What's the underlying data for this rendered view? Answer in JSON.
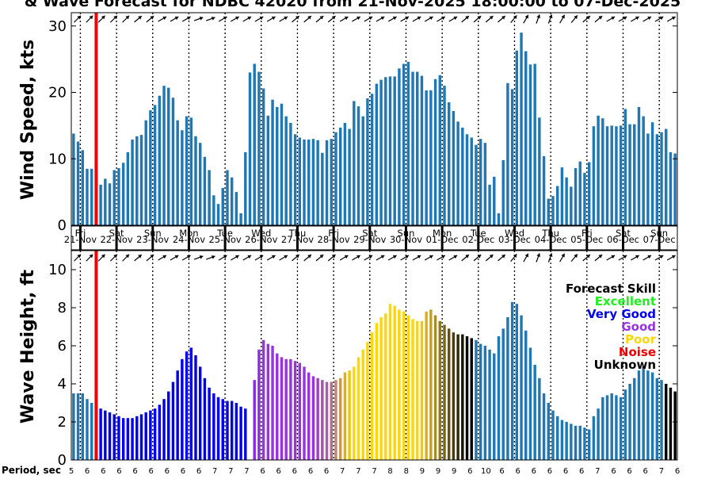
{
  "title": "& Wave Forecast for NDBC 42020 from 21-Nov-2025 18:00:00 to 07-Dec-2025",
  "wind_panel": {
    "ylabel": "Wind Speed, kts",
    "yticks": [
      "0",
      "10",
      "20",
      "30"
    ]
  },
  "wave_panel": {
    "ylabel": "Wave Height, ft",
    "yticks": [
      "0",
      "2",
      "4",
      "6",
      "8",
      "10"
    ]
  },
  "days": [
    {
      "dow": "Fri",
      "date": "21-Nov"
    },
    {
      "dow": "Sat",
      "date": "22-Nov"
    },
    {
      "dow": "Sun",
      "date": "23-Nov"
    },
    {
      "dow": "Mon",
      "date": "24-Nov"
    },
    {
      "dow": "Tue",
      "date": "25-Nov"
    },
    {
      "dow": "Wed",
      "date": "26-Nov"
    },
    {
      "dow": "Thu",
      "date": "27-Nov"
    },
    {
      "dow": "Fri",
      "date": "28-Nov"
    },
    {
      "dow": "Sat",
      "date": "29-Nov"
    },
    {
      "dow": "Sun",
      "date": "30-Nov"
    },
    {
      "dow": "Mon",
      "date": "01-Dec"
    },
    {
      "dow": "Tue",
      "date": "02-Dec"
    },
    {
      "dow": "Wed",
      "date": "03-Dec"
    },
    {
      "dow": "Thu",
      "date": "04-Dec"
    },
    {
      "dow": "Fri",
      "date": "05-Dec"
    },
    {
      "dow": "Sat",
      "date": "06-Dec"
    },
    {
      "dow": "Sun",
      "date": "07-Dec"
    }
  ],
  "legend": {
    "title": "Forecast Skill",
    "items": [
      {
        "label": "Excellent",
        "color": "#22ee22"
      },
      {
        "label": "Very Good",
        "color": "#0000ee"
      },
      {
        "label": "Good",
        "color": "#9933dd"
      },
      {
        "label": "Poor",
        "color": "#ffd700"
      },
      {
        "label": "Noise",
        "color": "#ee0000"
      },
      {
        "label": "Unknown",
        "color": "#000000"
      }
    ]
  },
  "period_label": "Period, sec",
  "period_ticks": [
    "5",
    "6",
    "6",
    "6",
    "6",
    "6",
    "6",
    "6",
    "6",
    "7",
    "7",
    "7",
    "6",
    "6",
    "6",
    "6",
    "6",
    "7",
    "7",
    "7",
    "8",
    "8",
    "9",
    "9",
    "9",
    "6",
    "10",
    "6",
    "6",
    "6",
    "6",
    "6",
    "6",
    "7",
    "6",
    "6",
    "6",
    "7",
    "6"
  ],
  "chart_data": {
    "type": "bar",
    "x_label": "",
    "x_start": "21-Nov-2025 18:00",
    "x_end": "07-Dec-2025",
    "step_hours": 3,
    "now_marker_index": 5,
    "now_marker_color": "#ee0000",
    "grid": "vertical dotted lines at each day",
    "series": [
      {
        "name": "Wind Speed, kts",
        "ylim": [
          0,
          32
        ],
        "values": [
          13.8,
          12.6,
          11.3,
          8.5,
          8.5,
          8.4,
          6.1,
          7.0,
          6.3,
          8.3,
          8.6,
          9.4,
          11.0,
          12.9,
          13.4,
          13.6,
          15.8,
          17.3,
          18.1,
          19.5,
          21.0,
          20.7,
          19.2,
          15.8,
          14.3,
          16.4,
          16.2,
          13.4,
          12.4,
          10.3,
          8.3,
          4.5,
          3.2,
          5.6,
          8.3,
          7.2,
          5.0,
          1.8,
          11.0,
          23.0,
          24.3,
          23.1,
          20.6,
          16.5,
          18.9,
          17.8,
          18.3,
          16.4,
          15.4,
          13.7,
          13.2,
          12.9,
          12.9,
          13.0,
          12.8,
          10.9,
          12.8,
          13.0,
          14.0,
          14.7,
          15.4,
          14.5,
          18.7,
          17.9,
          16.4,
          19.1,
          19.8,
          21.3,
          21.9,
          22.3,
          22.4,
          22.4,
          23.6,
          24.3,
          24.6,
          23.1,
          23.1,
          22.5,
          20.3,
          20.3,
          22.0,
          22.6,
          21.0,
          18.5,
          17.2,
          15.6,
          14.7,
          13.7,
          13.2,
          12.1,
          13.0,
          12.4,
          6.1,
          7.3,
          1.8,
          9.8,
          21.4,
          20.5,
          26.3,
          29.0,
          26.2,
          24.2,
          24.3,
          16.2,
          10.4,
          4.0,
          4.4,
          5.9,
          8.7,
          7.2,
          5.8,
          8.6,
          9.6,
          7.9,
          9.5,
          14.9,
          16.5,
          16.1,
          14.9,
          15.0,
          14.9,
          15.0,
          17.5,
          15.2,
          15.2,
          17.8,
          16.4,
          13.8,
          15.5,
          13.7,
          14.0,
          14.5,
          11.0,
          10.8
        ]
      },
      {
        "name": "Wave Height, ft",
        "ylim": [
          0,
          11
        ],
        "values": [
          3.5,
          3.5,
          3.5,
          3.2,
          3.0,
          2.9,
          2.7,
          2.6,
          2.5,
          2.4,
          2.3,
          2.2,
          2.2,
          2.2,
          2.3,
          2.4,
          2.5,
          2.6,
          2.7,
          2.9,
          3.2,
          3.6,
          4.1,
          4.7,
          5.3,
          5.7,
          5.9,
          5.5,
          4.9,
          4.3,
          3.8,
          3.5,
          3.3,
          3.2,
          3.1,
          3.1,
          3.0,
          2.8,
          2.7,
          0.0,
          4.2,
          5.8,
          6.3,
          6.1,
          6.0,
          5.6,
          5.4,
          5.3,
          5.3,
          5.2,
          5.1,
          4.9,
          4.6,
          4.4,
          4.3,
          4.2,
          4.1,
          4.1,
          4.2,
          4.3,
          4.6,
          4.7,
          4.9,
          5.4,
          5.8,
          6.2,
          6.7,
          7.2,
          7.5,
          7.7,
          8.2,
          8.1,
          7.9,
          7.8,
          7.6,
          7.4,
          7.3,
          7.3,
          7.8,
          7.9,
          7.6,
          7.3,
          7.1,
          6.9,
          6.7,
          6.6,
          6.6,
          6.5,
          6.4,
          6.3,
          6.1,
          6.0,
          5.8,
          5.6,
          6.5,
          6.9,
          7.5,
          8.3,
          8.2,
          7.6,
          6.8,
          5.9,
          5.0,
          4.3,
          3.5,
          3.0,
          2.6,
          2.3,
          2.1,
          2.0,
          1.9,
          1.8,
          1.8,
          1.7,
          1.6,
          2.3,
          2.7,
          3.3,
          3.4,
          3.5,
          3.4,
          3.3,
          3.7,
          4.0,
          4.3,
          4.7,
          4.9,
          4.7,
          4.6,
          4.3,
          4.2,
          4.0,
          3.8,
          3.6
        ]
      }
    ],
    "wave_bar_colors": [
      "#1f77b4",
      "#1f77b4",
      "#1f77b4",
      "#1f77b4",
      "#1f77b4",
      "#0000ee",
      "#0000ee",
      "#0000ee",
      "#0000ee",
      "#0000ee",
      "#0000ee",
      "#0000ee",
      "#0000ee",
      "#0000ee",
      "#0000ee",
      "#0000ee",
      "#0000ee",
      "#0000ee",
      "#0000ee",
      "#0000ee",
      "#0000ee",
      "#0000ee",
      "#0000ee",
      "#0000ee",
      "#0000ee",
      "#0000ee",
      "#0000ee",
      "#0000ee",
      "#0000ee",
      "#0000ee",
      "#0000ee",
      "#0000ee",
      "#0000ee",
      "#0000ee",
      "#0000ee",
      "#0000ee",
      "#0000ee",
      "#0000ee",
      "#0000ee",
      "#0000ee",
      "#8a2be2",
      "#8a2be2",
      "#9933dd",
      "#9933dd",
      "#9933dd",
      "#9933dd",
      "#9933dd",
      "#9933dd",
      "#9933dd",
      "#9933dd",
      "#9933dd",
      "#9933dd",
      "#9933dd",
      "#9933dd",
      "#a040c0",
      "#a650b0",
      "#aa60a0",
      "#b07090",
      "#bb8870",
      "#c89850",
      "#d8b030",
      "#eec800",
      "#ffd700",
      "#ffd700",
      "#ffd700",
      "#ffd700",
      "#ffd700",
      "#ffd700",
      "#ffd700",
      "#ffd700",
      "#ffd700",
      "#ffd700",
      "#ffd700",
      "#ffd700",
      "#ffd700",
      "#ffd700",
      "#ffd700",
      "#f0c810",
      "#d8b020",
      "#c0a028",
      "#a88c28",
      "#907828",
      "#786420",
      "#605018",
      "#483c10",
      "#302808",
      "#181400",
      "#000000",
      "#000000",
      "#1f77b4",
      "#1f77b4",
      "#1f77b4",
      "#1f77b4",
      "#1f77b4",
      "#1f77b4",
      "#1f77b4",
      "#1f77b4",
      "#1f77b4",
      "#1f77b4",
      "#1f77b4",
      "#1f77b4",
      "#1f77b4",
      "#1f77b4",
      "#1f77b4",
      "#1f77b4",
      "#1f77b4",
      "#1f77b4",
      "#1f77b4",
      "#1f77b4",
      "#1f77b4",
      "#1f77b4",
      "#1f77b4",
      "#1f77b4",
      "#1f77b4",
      "#1f77b4",
      "#1f77b4",
      "#1f77b4",
      "#1f77b4",
      "#1f77b4",
      "#1f77b4",
      "#1f77b4",
      "#1f77b4",
      "#1f77b4",
      "#1f77b4",
      "#1f77b4",
      "#1f77b4",
      "#1f77b4",
      "#1f77b4",
      "#1f77b4",
      "#1f77b4",
      "#1f77b4"
    ],
    "wind_bar_color": "#1f77b4",
    "direction_arrows_deg": [
      315,
      315,
      315,
      315,
      315,
      320,
      320,
      330,
      330,
      330,
      340,
      340,
      330,
      330,
      330,
      330,
      330,
      330,
      320,
      320,
      320,
      320,
      330,
      330,
      330,
      330,
      330,
      330,
      330,
      330,
      330,
      330,
      320,
      320,
      320,
      320,
      310,
      300,
      290,
      290,
      300,
      310,
      320,
      320,
      330,
      330,
      330,
      330,
      330,
      330
    ]
  }
}
